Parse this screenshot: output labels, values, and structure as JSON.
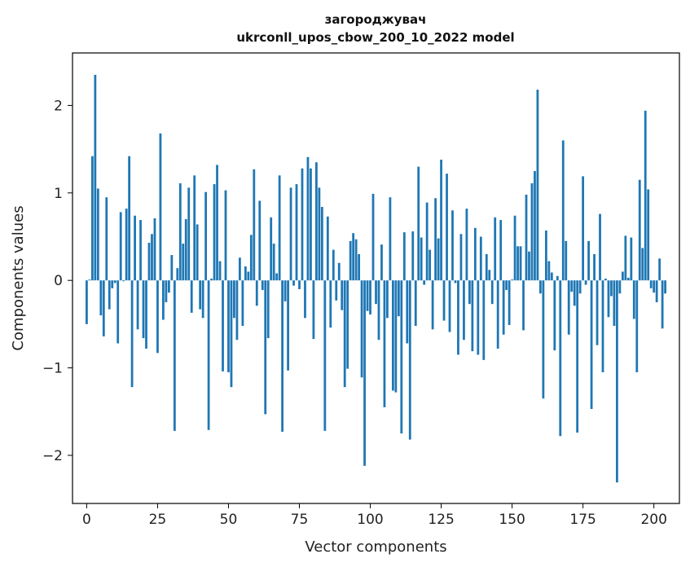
{
  "chart_data": {
    "type": "bar",
    "title": "загороджувач",
    "subtitle": "ukrconll_upos_cbow_200_10_2022 model",
    "xlabel": "Vector components",
    "ylabel": "Components values",
    "xlim": [
      -5,
      209
    ],
    "ylim": [
      -2.55,
      2.6
    ],
    "x_ticks": [
      0,
      25,
      50,
      75,
      100,
      125,
      150,
      175,
      200
    ],
    "y_ticks": [
      -2,
      -1,
      0,
      1,
      2
    ],
    "y_tick_labels": [
      "−2",
      "−1",
      "0",
      "1",
      "2"
    ],
    "bar_color": "#1f77b4",
    "grid": false,
    "values": [
      -0.5,
      0.01,
      1.42,
      2.35,
      1.05,
      -0.4,
      -0.64,
      0.95,
      -0.33,
      -0.09,
      -0.03,
      -0.72,
      0.78,
      -0.01,
      0.82,
      1.42,
      -1.22,
      0.74,
      -0.56,
      0.69,
      -0.66,
      -0.78,
      0.43,
      0.53,
      0.71,
      -0.83,
      1.68,
      -0.45,
      -0.25,
      -0.14,
      0.29,
      -1.72,
      0.14,
      1.11,
      0.42,
      0.7,
      1.06,
      -0.37,
      1.2,
      0.64,
      -0.33,
      -0.43,
      1.01,
      -1.71,
      0.02,
      1.1,
      1.32,
      0.22,
      -1.04,
      1.03,
      -1.05,
      -1.22,
      -0.43,
      -0.68,
      0.26,
      -0.52,
      0.16,
      0.1,
      0.52,
      1.27,
      -0.29,
      0.91,
      -0.11,
      -1.53,
      -0.66,
      0.72,
      0.42,
      0.08,
      1.2,
      -1.73,
      -0.24,
      -1.03,
      1.06,
      -0.06,
      1.1,
      -0.1,
      1.28,
      -0.43,
      1.41,
      1.28,
      -0.67,
      1.35,
      1.06,
      0.84,
      -1.72,
      0.73,
      -0.54,
      0.35,
      -0.23,
      0.2,
      -0.34,
      -1.22,
      -1.01,
      0.45,
      0.54,
      0.47,
      0.3,
      -1.11,
      -2.12,
      -0.35,
      -0.39,
      0.99,
      -0.27,
      -0.68,
      0.41,
      -1.45,
      -0.43,
      0.95,
      -1.26,
      -1.28,
      -0.41,
      -1.75,
      0.55,
      -0.72,
      -1.82,
      0.56,
      -0.52,
      1.3,
      0.49,
      -0.05,
      0.89,
      0.35,
      -0.56,
      0.94,
      0.48,
      1.38,
      -0.46,
      1.22,
      -0.59,
      0.8,
      -0.03,
      -0.85,
      0.53,
      -0.68,
      0.82,
      -0.27,
      -0.81,
      0.6,
      -0.85,
      0.5,
      -0.91,
      0.3,
      0.12,
      -0.27,
      0.72,
      -0.78,
      0.69,
      -0.62,
      -0.11,
      -0.51,
      0.01,
      0.74,
      0.39,
      0.39,
      -0.57,
      0.98,
      0.33,
      1.11,
      1.25,
      2.18,
      -0.15,
      -1.35,
      0.57,
      0.22,
      0.09,
      -0.8,
      0.05,
      -1.78,
      1.6,
      0.45,
      -0.62,
      -0.13,
      -0.29,
      -1.74,
      -0.15,
      1.19,
      -0.05,
      0.45,
      -1.47,
      0.3,
      -0.74,
      0.76,
      -1.05,
      0.02,
      -0.42,
      -0.18,
      -0.52,
      -2.31,
      -0.15,
      0.1,
      0.51,
      0.03,
      0.49,
      -0.44,
      -1.05,
      1.15,
      0.37,
      1.94,
      1.04,
      -0.09,
      -0.14,
      -0.25,
      0.25,
      -0.55,
      -0.15
    ]
  }
}
